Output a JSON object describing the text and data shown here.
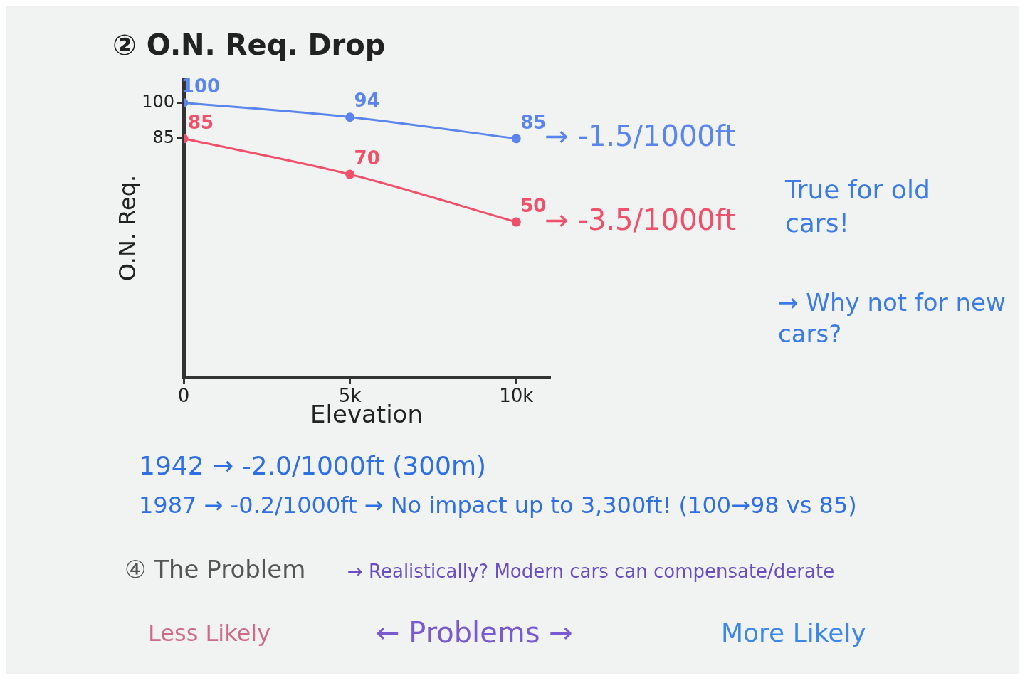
{
  "chart_data": {
    "type": "line",
    "title": "② O.N. Req. Drop",
    "xlabel": "Elevation",
    "ylabel": "O.N. Req.",
    "x": [
      0,
      5000,
      10000
    ],
    "series": [
      {
        "color": "#5a85ee",
        "values": [
          100,
          94,
          85
        ]
      },
      {
        "color": "#f0506a",
        "values": [
          85,
          70,
          50
        ]
      }
    ],
    "xlim": [
      0,
      11000
    ],
    "xticks": [
      {
        "value": 0,
        "label": "0"
      },
      {
        "value": 5000,
        "label": "5k"
      },
      {
        "value": 10000,
        "label": "10k"
      }
    ],
    "ylim": [
      -15,
      110
    ],
    "yticks": [
      85,
      100
    ],
    "data_labels": true,
    "grid": false,
    "legend": false,
    "marker": "circle",
    "line_style": "solid",
    "tick_labels": "xy",
    "annotations": [
      {
        "text": "→ -1.5/1000ft",
        "x": 10000,
        "y": 85
      },
      {
        "text": "→ -3.5/1000ft",
        "x": 10000,
        "y": 50
      },
      "True for old cars!",
      "→ Why not for new cars?",
      "1942 → -2.0/1000ft (300m)",
      "1987 → -0.2/1000ft → No impact up to 3,300ft! (100→98 vs 85)",
      "④ The Problem",
      "→ Realistically? Modern cars can compensate/derate",
      "Less Likely",
      "← Problems →",
      "More Likely"
    ]
  }
}
